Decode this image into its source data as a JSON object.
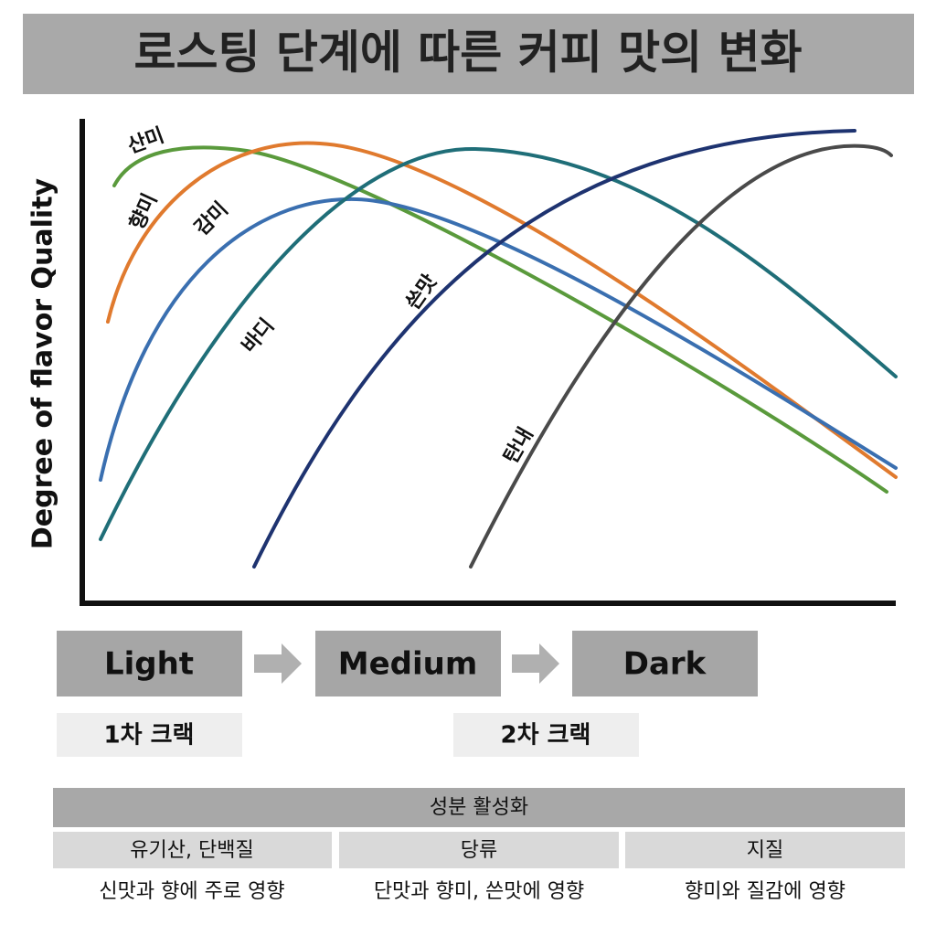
{
  "title": "로스팅 단계에 따른 커피 맛의 변화",
  "y_axis_label": "Degree of flavor Quality",
  "curves": [
    {
      "label": "산미",
      "color": "#5a9a3c"
    },
    {
      "label": "향미",
      "color": "#e07a2e"
    },
    {
      "label": "감미",
      "color": "#3a6fb0"
    },
    {
      "label": "바디",
      "color": "#1f6e78"
    },
    {
      "label": "쓴맛",
      "color": "#1e3370"
    },
    {
      "label": "탄내",
      "color": "#4a4a4a"
    }
  ],
  "stages": [
    "Light",
    "Medium",
    "Dark"
  ],
  "cracks": [
    "1차 크랙",
    "2차 크랙"
  ],
  "table": {
    "header": "성분 활성화",
    "columns": [
      {
        "name": "유기산, 단백질",
        "effect": "신맛과 향에 주로 영향"
      },
      {
        "name": "당류",
        "effect": "단맛과 향미, 쓴맛에 영향"
      },
      {
        "name": "지질",
        "effect": "향미와 질감에 영향"
      }
    ]
  }
}
